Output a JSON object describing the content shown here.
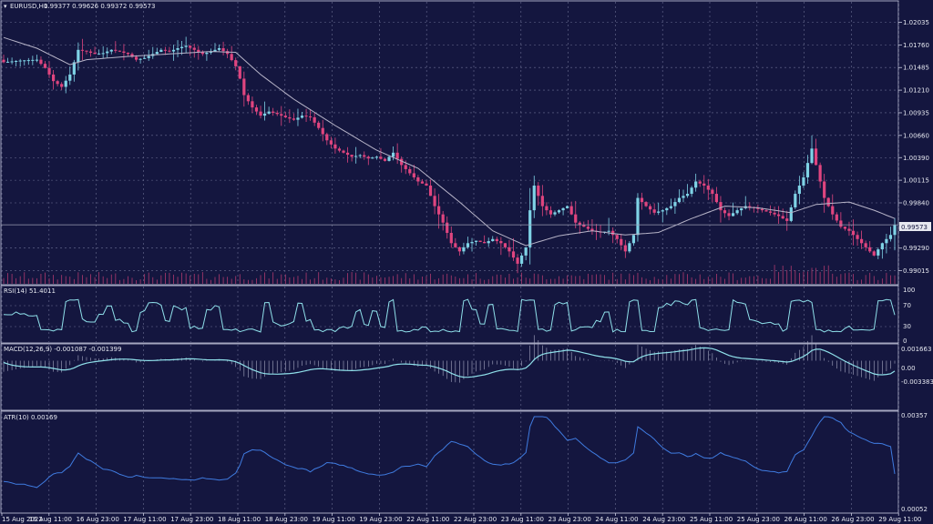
{
  "header": {
    "symbol": "EURUSD,H1",
    "ohlc": "0.99377 0.99626 0.99372 0.99573",
    "rsi": "RSI(14) 51.4011",
    "macd": "MACD(12,26,9) -0.001087 -0.001399",
    "atr": "ATR(10) 0.00169"
  },
  "price_panel": {
    "ticks": [
      "1.02035",
      "1.01760",
      "1.01485",
      "1.01210",
      "1.00935",
      "1.00660",
      "1.00390",
      "1.00115",
      "0.99840",
      "0.99290",
      "0.99015"
    ],
    "current_price": "0.99573",
    "ylim": [
      0.989,
      1.0214
    ]
  },
  "rsi_panel": {
    "ticks": [
      "100",
      "70",
      "30",
      "0"
    ]
  },
  "macd_panel": {
    "ticks": [
      "0.001663",
      "0.00",
      "-0.003383"
    ]
  },
  "atr_panel": {
    "ticks": [
      "0.00357",
      "0.00052"
    ]
  },
  "x_axis": [
    "15 Aug 2022",
    "16 Aug 11:00",
    "16 Aug 23:00",
    "17 Aug 11:00",
    "17 Aug 23:00",
    "18 Aug 11:00",
    "18 Aug 23:00",
    "19 Aug 11:00",
    "19 Aug 23:00",
    "22 Aug 11:00",
    "22 Aug 23:00",
    "23 Aug 11:00",
    "23 Aug 23:00",
    "24 Aug 11:00",
    "24 Aug 23:00",
    "25 Aug 11:00",
    "25 Aug 23:00",
    "26 Aug 11:00",
    "26 Aug 23:00",
    "29 Aug 11:00"
  ],
  "colors": {
    "bg": "#14163f",
    "bull": "#7fd3e6",
    "bear": "#e0457f",
    "ma": "#b7b4c8",
    "rsi": "#8fe0ea",
    "macd": "#8fe0ea",
    "atr": "#3f7be0",
    "grid": "#6b6f93"
  },
  "chart_data": {
    "type": "candlestick",
    "symbol": "EURUSD",
    "timeframe": "H1",
    "current_price": 0.99573,
    "close_path": [
      [
        0,
        1.0155
      ],
      [
        4,
        1.0157
      ],
      [
        8,
        1.0158
      ],
      [
        10,
        1.0148
      ],
      [
        12,
        1.0132
      ],
      [
        14,
        1.0125
      ],
      [
        16,
        1.014
      ],
      [
        18,
        1.017
      ],
      [
        20,
        1.0168
      ],
      [
        22,
        1.0165
      ],
      [
        24,
        1.0166
      ],
      [
        26,
        1.017
      ],
      [
        28,
        1.0168
      ],
      [
        30,
        1.0165
      ],
      [
        32,
        1.0158
      ],
      [
        34,
        1.016
      ],
      [
        36,
        1.0165
      ],
      [
        38,
        1.017
      ],
      [
        40,
        1.0168
      ],
      [
        42,
        1.0172
      ],
      [
        44,
        1.0175
      ],
      [
        46,
        1.017
      ],
      [
        48,
        1.0165
      ],
      [
        50,
        1.0168
      ],
      [
        52,
        1.0172
      ],
      [
        54,
        1.0165
      ],
      [
        56,
        1.015
      ],
      [
        57,
        1.0135
      ],
      [
        58,
        1.0115
      ],
      [
        60,
        1.01
      ],
      [
        62,
        1.009
      ],
      [
        64,
        1.0095
      ],
      [
        66,
        1.0092
      ],
      [
        68,
        1.0088
      ],
      [
        70,
        1.0085
      ],
      [
        72,
        1.009
      ],
      [
        74,
        1.0088
      ],
      [
        76,
        1.0075
      ],
      [
        78,
        1.006
      ],
      [
        80,
        1.005
      ],
      [
        82,
        1.0045
      ],
      [
        84,
        1.004
      ],
      [
        86,
        1.0042
      ],
      [
        88,
        1.0038
      ],
      [
        90,
        1.004
      ],
      [
        92,
        1.0035
      ],
      [
        94,
        1.0045
      ],
      [
        96,
        1.003
      ],
      [
        98,
        1.002
      ],
      [
        100,
        1.001
      ],
      [
        102,
        1.0005
      ],
      [
        104,
        0.998
      ],
      [
        106,
        0.996
      ],
      [
        108,
        0.9935
      ],
      [
        110,
        0.9925
      ],
      [
        112,
        0.9935
      ],
      [
        114,
        0.9938
      ],
      [
        116,
        0.9935
      ],
      [
        118,
        0.994
      ],
      [
        120,
        0.9935
      ],
      [
        122,
        0.9925
      ],
      [
        124,
        0.991
      ],
      [
        126,
        0.993
      ],
      [
        127,
        0.9975
      ],
      [
        128,
        1.0005
      ],
      [
        130,
        0.998
      ],
      [
        132,
        0.997
      ],
      [
        134,
        0.9975
      ],
      [
        136,
        0.998
      ],
      [
        138,
        0.996
      ],
      [
        140,
        0.9955
      ],
      [
        142,
        0.995
      ],
      [
        144,
        0.9948
      ],
      [
        146,
        0.995
      ],
      [
        148,
        0.994
      ],
      [
        150,
        0.9925
      ],
      [
        152,
        0.9945
      ],
      [
        153,
        0.999
      ],
      [
        155,
        0.998
      ],
      [
        157,
        0.9972
      ],
      [
        159,
        0.9975
      ],
      [
        161,
        0.998
      ],
      [
        163,
        0.999
      ],
      [
        165,
        0.9995
      ],
      [
        167,
        1.001
      ],
      [
        169,
        1.0005
      ],
      [
        171,
        0.9995
      ],
      [
        173,
        0.9975
      ],
      [
        175,
        0.9968
      ],
      [
        177,
        0.9975
      ],
      [
        179,
        0.998
      ],
      [
        181,
        0.9978
      ],
      [
        183,
        0.9975
      ],
      [
        185,
        0.9972
      ],
      [
        187,
        0.9968
      ],
      [
        189,
        0.9962
      ],
      [
        191,
        0.9995
      ],
      [
        193,
        1.0015
      ],
      [
        195,
        1.005
      ],
      [
        196,
        1.003
      ],
      [
        198,
        0.999
      ],
      [
        200,
        0.997
      ],
      [
        202,
        0.9955
      ],
      [
        204,
        0.995
      ],
      [
        206,
        0.994
      ],
      [
        208,
        0.993
      ],
      [
        210,
        0.992
      ],
      [
        212,
        0.9935
      ],
      [
        214,
        0.9945
      ],
      [
        215,
        0.99573
      ]
    ],
    "moving_average": [
      [
        0,
        1.0185
      ],
      [
        8,
        1.0172
      ],
      [
        16,
        1.0152
      ],
      [
        20,
        1.0158
      ],
      [
        30,
        1.0162
      ],
      [
        40,
        1.0165
      ],
      [
        50,
        1.0168
      ],
      [
        56,
        1.0167
      ],
      [
        62,
        1.014
      ],
      [
        70,
        1.011
      ],
      [
        80,
        1.0078
      ],
      [
        90,
        1.0048
      ],
      [
        100,
        1.0026
      ],
      [
        110,
        0.9985
      ],
      [
        118,
        0.995
      ],
      [
        126,
        0.9932
      ],
      [
        134,
        0.9944
      ],
      [
        142,
        0.995
      ],
      [
        150,
        0.9945
      ],
      [
        158,
        0.9948
      ],
      [
        166,
        0.9965
      ],
      [
        174,
        0.998
      ],
      [
        182,
        0.9978
      ],
      [
        190,
        0.9972
      ],
      [
        196,
        0.9982
      ],
      [
        204,
        0.9985
      ],
      [
        210,
        0.9975
      ],
      [
        215,
        0.9965
      ]
    ],
    "rsi": {
      "ylim": [
        0,
        100
      ],
      "levels": [
        70,
        30
      ],
      "last": 51.4011
    },
    "macd": {
      "ylim": [
        -0.003383,
        0.001663
      ],
      "main": -0.001087,
      "signal": -0.001399
    },
    "atr": {
      "ylim": [
        0.00052,
        0.00357
      ],
      "last": 0.00169
    }
  }
}
